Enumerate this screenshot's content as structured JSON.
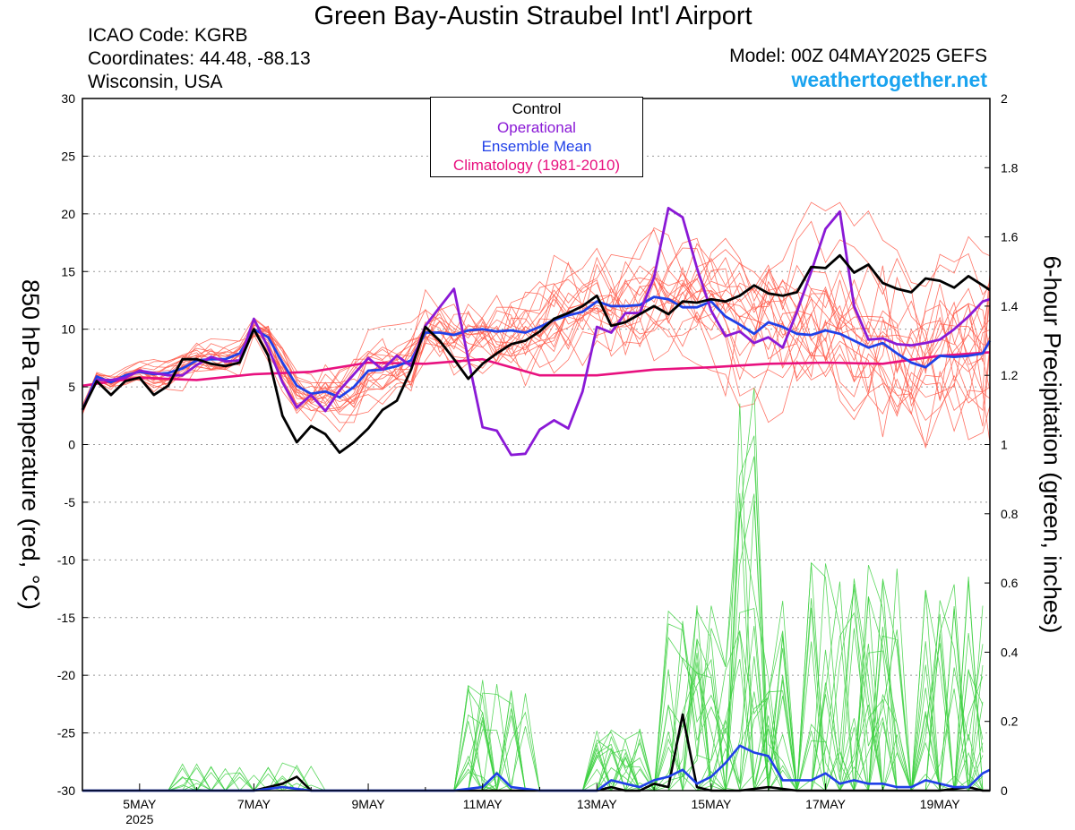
{
  "header": {
    "title": "Green Bay-Austin Straubel Int'l Airport",
    "icao": "ICAO Code: KGRB",
    "coords": "Coordinates: 44.48, -88.13",
    "region": "Wisconsin, USA",
    "model": "Model: 00Z 04MAY2025 GEFS",
    "site": "weathertogether.net"
  },
  "colors": {
    "control": "#000000",
    "operational": "#8a19d6",
    "ensemble_mean": "#2040e8",
    "climatology": "#e8117f",
    "member_temp": "#ff5a4a",
    "member_precip": "#3cd040",
    "site_link": "#1aa3ef"
  },
  "chart_data": {
    "type": "line",
    "ylabel_left": "850 hPa Temperature (red, °C)",
    "ylabel_right": "6-hour Precipitation (green, inches)",
    "y_left_range": [
      -30,
      30
    ],
    "y_left_ticks": [
      "30",
      "25",
      "20",
      "15",
      "10",
      "5",
      "0",
      "-5",
      "-10",
      "-15",
      "-20",
      "-25",
      "-30"
    ],
    "y_right_range": [
      0,
      2
    ],
    "y_right_ticks": [
      "2",
      "1.8",
      "1.6",
      "1.4",
      "1.2",
      "1",
      "0.8",
      "0.6",
      "0.4",
      "0.2",
      "0"
    ],
    "x_range_days": [
      4.0,
      19.875
    ],
    "x_ticks": [
      {
        "day": 5,
        "label": "5MAY"
      },
      {
        "day": 7,
        "label": "7MAY"
      },
      {
        "day": 9,
        "label": "9MAY"
      },
      {
        "day": 11,
        "label": "11MAY"
      },
      {
        "day": 13,
        "label": "13MAY"
      },
      {
        "day": 15,
        "label": "15MAY"
      },
      {
        "day": 17,
        "label": "17MAY"
      },
      {
        "day": 19,
        "label": "19MAY"
      }
    ],
    "x_year_label": "2025",
    "grid": "horizontal dotted",
    "legend": {
      "position": "top-center",
      "entries": [
        "Control",
        "Operational",
        "Ensemble Mean",
        "Climatology (1981-2010)"
      ]
    },
    "series": [
      {
        "name": "Control",
        "axis": "left",
        "x": [
          4.0,
          4.25,
          4.5,
          4.75,
          5,
          5.25,
          5.5,
          5.75,
          6,
          6.25,
          6.5,
          6.75,
          7,
          7.25,
          7.5,
          7.75,
          8,
          8.25,
          8.5,
          8.75,
          9,
          9.25,
          9.5,
          9.75,
          10,
          10.25,
          10.5,
          10.75,
          11,
          11.25,
          11.5,
          11.75,
          12,
          12.25,
          12.5,
          12.75,
          13,
          13.25,
          13.5,
          13.75,
          14,
          14.25,
          14.5,
          14.75,
          15,
          15.25,
          15.5,
          15.75,
          16,
          16.25,
          16.5,
          16.75,
          17,
          17.25,
          17.5,
          17.75,
          18,
          18.25,
          18.5,
          18.75,
          19,
          19.25,
          19.5,
          19.75,
          19.875
        ],
        "y": [
          3,
          5.5,
          4.3,
          5.5,
          5.8,
          4.3,
          5.1,
          7.4,
          7.4,
          7,
          6.8,
          7.1,
          10,
          7.7,
          2.5,
          0.2,
          1.6,
          0.9,
          -0.7,
          0.2,
          1.4,
          3,
          3.8,
          6.5,
          10.2,
          9,
          7.4,
          5.7,
          7,
          7.9,
          8.7,
          9,
          9.8,
          10.9,
          11.4,
          12,
          12.9,
          10.3,
          10.6,
          11.3,
          12,
          11.3,
          12.4,
          12.3,
          12.6,
          12.4,
          12.9,
          13.8,
          13.1,
          12.9,
          13.2,
          15.4,
          15.3,
          16.4,
          14.9,
          15.6,
          14,
          13.5,
          13.2,
          14.4,
          14.2,
          13.6,
          14.6,
          13.8,
          13.4
        ]
      },
      {
        "name": "Operational",
        "axis": "left",
        "x": [
          4.0,
          4.25,
          4.5,
          4.75,
          5,
          5.25,
          5.5,
          5.75,
          6,
          6.25,
          6.5,
          6.75,
          7,
          7.25,
          7.5,
          7.75,
          8,
          8.25,
          8.5,
          8.75,
          9,
          9.25,
          9.5,
          9.75,
          10,
          10.25,
          10.5,
          10.75,
          11,
          11.25,
          11.5,
          11.75,
          12,
          12.25,
          12.5,
          12.75,
          13,
          13.25,
          13.5,
          13.75,
          14,
          14.25,
          14.5,
          14.75,
          15,
          15.25,
          15.5,
          15.75,
          16,
          16.25,
          16.5,
          16.75,
          17,
          17.25,
          17.5,
          17.75,
          18,
          18.25,
          18.5,
          18.75,
          19,
          19.25,
          19.5,
          19.75,
          19.875
        ],
        "y": [
          3,
          5.6,
          5.6,
          5.8,
          6.4,
          6.2,
          6,
          6,
          6.9,
          7.6,
          7.2,
          7.3,
          10.9,
          8.4,
          5.4,
          3.2,
          4.3,
          2.9,
          4.7,
          6.1,
          7.5,
          6.5,
          7.7,
          6.8,
          10.3,
          11.9,
          13.5,
          7.4,
          1.5,
          1.2,
          -0.9,
          -0.8,
          1.3,
          2.1,
          1.4,
          4.6,
          10.2,
          9.7,
          11.4,
          11.4,
          14.5,
          20.5,
          19.7,
          15.3,
          11.6,
          9.4,
          9.8,
          8.8,
          9.3,
          8.4,
          11.5,
          15,
          18.7,
          20.2,
          12,
          9.1,
          9.2,
          8.7,
          8.6,
          8.8,
          9.1,
          10,
          11.1,
          12.4,
          12.6
        ]
      },
      {
        "name": "Ensemble Mean",
        "axis": "left",
        "x": [
          4.0,
          4.25,
          4.5,
          4.75,
          5,
          5.25,
          5.5,
          5.75,
          6,
          6.25,
          6.5,
          6.75,
          7,
          7.25,
          7.5,
          7.75,
          8,
          8.25,
          8.5,
          8.75,
          9,
          9.25,
          9.5,
          9.75,
          10,
          10.25,
          10.5,
          10.75,
          11,
          11.25,
          11.5,
          11.75,
          12,
          12.25,
          12.5,
          12.75,
          13,
          13.25,
          13.5,
          13.75,
          14,
          14.25,
          14.5,
          14.75,
          15,
          15.25,
          15.5,
          15.75,
          16,
          16.25,
          16.5,
          16.75,
          17,
          17.25,
          17.5,
          17.75,
          18,
          18.25,
          18.5,
          18.75,
          19,
          19.25,
          19.5,
          19.75,
          19.875
        ],
        "y": [
          3,
          5.9,
          5.4,
          6,
          6.3,
          6.1,
          6.2,
          6.6,
          7.3,
          7.4,
          7.4,
          7.9,
          10,
          9.3,
          7.1,
          5.1,
          4.4,
          4.6,
          4.1,
          5,
          6.4,
          6.5,
          6.8,
          7.3,
          9.7,
          9.7,
          9.5,
          9.9,
          10,
          9.8,
          9.9,
          9.7,
          10.2,
          10.8,
          11.2,
          11.5,
          12.4,
          12,
          12,
          12.1,
          12.8,
          12.6,
          11.9,
          11.9,
          12.4,
          11.1,
          10.4,
          9.6,
          10.6,
          10.2,
          9.6,
          9.5,
          9.9,
          9.6,
          9,
          8.4,
          8.8,
          7.9,
          7.1,
          6.7,
          7.7,
          7.6,
          7.7,
          7.9,
          9
        ]
      },
      {
        "name": "Climatology (1981-2010)",
        "axis": "left",
        "x": [
          4.0,
          5,
          6,
          7,
          8,
          9,
          10,
          11,
          11.5,
          12,
          13,
          14,
          15,
          16,
          17,
          18,
          19,
          19.875
        ],
        "y": [
          5.1,
          5.8,
          5.6,
          6.1,
          6.3,
          7.1,
          7,
          7.4,
          6.7,
          6,
          6,
          6.5,
          6.7,
          7,
          7.1,
          7,
          7.7,
          8
        ]
      },
      {
        "name": "Control precip",
        "axis": "right",
        "x": [
          4.0,
          4.5,
          5,
          5.5,
          6,
          6.5,
          7,
          7.5,
          7.75,
          8,
          8.5,
          9,
          9.5,
          10,
          10.5,
          11,
          11.5,
          12,
          12.5,
          13,
          13.25,
          13.5,
          13.75,
          14,
          14.25,
          14.5,
          14.75,
          15,
          15.5,
          16,
          16.5,
          17,
          17.5,
          18,
          18.5,
          19,
          19.5,
          19.75,
          19.875
        ],
        "y": [
          0,
          0,
          0,
          0,
          0,
          0,
          0,
          0.02,
          0.04,
          0,
          0,
          0,
          0,
          0,
          0,
          0,
          0,
          0,
          0,
          0,
          0.01,
          0,
          0,
          0.02,
          0.01,
          0.22,
          0.01,
          0,
          0,
          0.01,
          0,
          0,
          0,
          0,
          0,
          0,
          0.01,
          0,
          0
        ]
      },
      {
        "name": "Ensemble Mean precip",
        "axis": "right",
        "x": [
          4.0,
          4.5,
          5,
          5.5,
          6,
          6.5,
          7,
          7.5,
          8,
          8.5,
          9,
          9.5,
          10,
          10.5,
          11,
          11.25,
          11.5,
          12,
          12.5,
          13,
          13.25,
          13.5,
          13.75,
          14,
          14.25,
          14.5,
          14.75,
          15,
          15.25,
          15.5,
          15.75,
          16,
          16.25,
          16.5,
          16.75,
          17,
          17.25,
          17.5,
          17.75,
          18,
          18.25,
          18.5,
          18.75,
          19,
          19.25,
          19.5,
          19.75,
          19.875
        ],
        "y": [
          0,
          0,
          0,
          0,
          0,
          0,
          0,
          0.01,
          0,
          0,
          0,
          0,
          0,
          0,
          0.01,
          0.05,
          0.01,
          0,
          0,
          0,
          0.03,
          0.02,
          0.01,
          0.03,
          0.04,
          0.06,
          0.02,
          0.04,
          0.08,
          0.13,
          0.11,
          0.1,
          0.03,
          0.03,
          0.03,
          0.05,
          0.02,
          0.03,
          0.02,
          0.02,
          0.01,
          0.01,
          0.03,
          0.02,
          0.01,
          0.01,
          0.05,
          0.06
        ]
      }
    ]
  }
}
